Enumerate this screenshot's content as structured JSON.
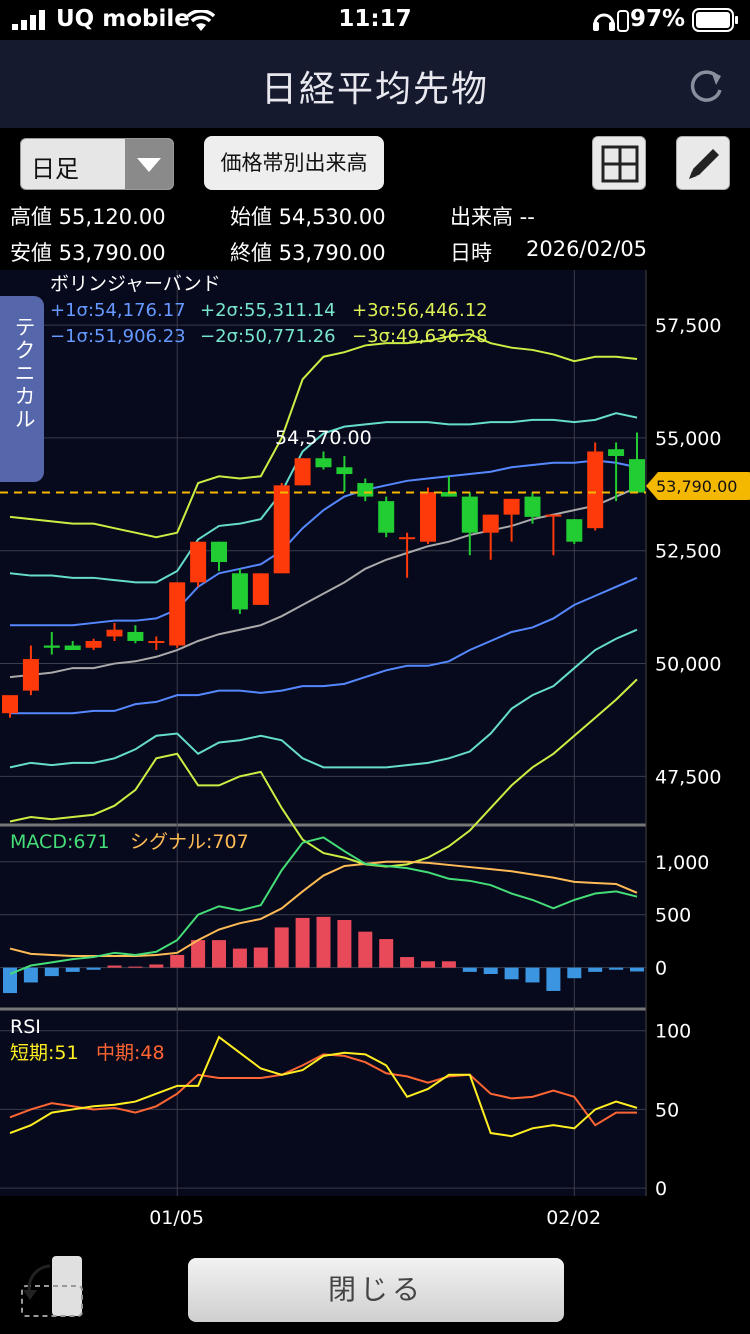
{
  "status": {
    "carrier": "UQ mobile",
    "time": "11:17",
    "battery": "97%"
  },
  "navbar": {
    "title": "日経平均先物"
  },
  "toolbar": {
    "period": "日足",
    "volume_button": "価格帯別出来高"
  },
  "info": {
    "high": "高値 55,120.00",
    "open": "始値 54,530.00",
    "volume": "出来高 --",
    "low": "安値 53,790.00",
    "close": "終値 53,790.00",
    "date_label": "日時",
    "date": "2026/02/05"
  },
  "side_tab": "テクニカル",
  "bollinger": {
    "title": "ボリンジャーバンド",
    "p1": "+1σ:54,176.17",
    "p2": "+2σ:55,311.14",
    "p3": "+3σ:56,446.12",
    "m1": "−1σ:51,906.23",
    "m2": "−2σ:50,771.26",
    "m3": "−3σ:49,636.28"
  },
  "price_annotation": "54,570.00",
  "current_price": "53,790.00",
  "macd": {
    "label": "MACD:671",
    "signal": "シグナル:707"
  },
  "rsi": {
    "label": "RSI",
    "short": "短期:51",
    "mid": "中期:48"
  },
  "bottom": {
    "close_label": "閉じる"
  },
  "colors": {
    "up": "#ff3a0a",
    "down": "#22cc33",
    "mid_band": "#aaaaaa",
    "band1": "#5588ff",
    "band2": "#66ddcc",
    "band3": "#ccee44",
    "macd": "#44dd77",
    "signal": "#ffbb55",
    "rsi_short": "#ffee22",
    "rsi_mid": "#ff6633"
  },
  "chart_data": [
    {
      "type": "candlestick",
      "title": "日経平均先物",
      "period": "日足",
      "y_ticks": [
        47500,
        50000,
        52500,
        55000,
        57500
      ],
      "x_ticks": [
        "01/05",
        "02/02"
      ],
      "ylim": [
        46400,
        58500
      ],
      "candles": [
        {
          "o": 48900,
          "h": 49200,
          "l": 48800,
          "c": 49300
        },
        {
          "o": 49400,
          "h": 50400,
          "l": 49300,
          "c": 50100
        },
        {
          "o": 50400,
          "h": 50700,
          "l": 50200,
          "c": 50350
        },
        {
          "o": 50400,
          "h": 50500,
          "l": 50300,
          "c": 50300
        },
        {
          "o": 50350,
          "h": 50550,
          "l": 50300,
          "c": 50500
        },
        {
          "o": 50600,
          "h": 50900,
          "l": 50500,
          "c": 50750
        },
        {
          "o": 50700,
          "h": 50850,
          "l": 50450,
          "c": 50500
        },
        {
          "o": 50500,
          "h": 50600,
          "l": 50300,
          "c": 50500
        },
        {
          "o": 50400,
          "h": 51800,
          "l": 50350,
          "c": 51800
        },
        {
          "o": 51800,
          "h": 52700,
          "l": 51700,
          "c": 52700
        },
        {
          "o": 52700,
          "h": 52700,
          "l": 52050,
          "c": 52250
        },
        {
          "o": 52000,
          "h": 52100,
          "l": 51100,
          "c": 51200
        },
        {
          "o": 51300,
          "h": 52000,
          "l": 51300,
          "c": 52000
        },
        {
          "o": 52000,
          "h": 54000,
          "l": 52000,
          "c": 53950
        },
        {
          "o": 53950,
          "h": 54550,
          "l": 53950,
          "c": 54550
        },
        {
          "o": 54550,
          "h": 54700,
          "l": 54300,
          "c": 54350
        },
        {
          "o": 54350,
          "h": 54600,
          "l": 53800,
          "c": 54200
        },
        {
          "o": 54000,
          "h": 54100,
          "l": 53600,
          "c": 53700
        },
        {
          "o": 53600,
          "h": 53700,
          "l": 52800,
          "c": 52900
        },
        {
          "o": 52800,
          "h": 52900,
          "l": 51900,
          "c": 52800
        },
        {
          "o": 52700,
          "h": 53900,
          "l": 52650,
          "c": 53800
        },
        {
          "o": 53800,
          "h": 54150,
          "l": 53700,
          "c": 53700
        },
        {
          "o": 53700,
          "h": 53800,
          "l": 52400,
          "c": 52900
        },
        {
          "o": 52900,
          "h": 53300,
          "l": 52300,
          "c": 53300
        },
        {
          "o": 53300,
          "h": 53650,
          "l": 52700,
          "c": 53650
        },
        {
          "o": 53700,
          "h": 53800,
          "l": 53100,
          "c": 53250
        },
        {
          "o": 53300,
          "h": 53300,
          "l": 52400,
          "c": 53300
        },
        {
          "o": 53200,
          "h": 53200,
          "l": 52650,
          "c": 52700
        },
        {
          "o": 53000,
          "h": 54900,
          "l": 52950,
          "c": 54700
        },
        {
          "o": 54750,
          "h": 54900,
          "l": 53600,
          "c": 54600
        },
        {
          "o": 54530,
          "h": 55120,
          "l": 53790,
          "c": 53790
        }
      ],
      "bollinger": {
        "mid": [
          49700,
          49750,
          49800,
          49900,
          49900,
          50000,
          50050,
          50150,
          50300,
          50500,
          50650,
          50750,
          50850,
          51050,
          51300,
          51550,
          51800,
          52100,
          52300,
          52450,
          52600,
          52700,
          52850,
          52950,
          53050,
          53200,
          53300,
          53400,
          53500,
          53700,
          53900
        ],
        "p1": [
          50850,
          50850,
          50850,
          50850,
          50900,
          50950,
          50950,
          51000,
          51200,
          51700,
          52000,
          52100,
          52200,
          52500,
          53000,
          53400,
          53700,
          53850,
          53950,
          54050,
          54100,
          54150,
          54200,
          54250,
          54350,
          54400,
          54450,
          54450,
          54500,
          54450,
          54350
        ],
        "p2": [
          52000,
          51950,
          51950,
          51900,
          51900,
          51850,
          51800,
          51800,
          52050,
          52750,
          53050,
          53100,
          53200,
          53800,
          54700,
          55100,
          55250,
          55300,
          55350,
          55350,
          55350,
          55300,
          55300,
          55350,
          55350,
          55400,
          55400,
          55350,
          55400,
          55550,
          55450
        ],
        "p3": [
          53250,
          53200,
          53150,
          53100,
          53100,
          53000,
          52900,
          52800,
          52900,
          54000,
          54150,
          54100,
          54150,
          55000,
          56300,
          56800,
          56900,
          57050,
          57100,
          57100,
          57150,
          57250,
          57300,
          57100,
          57000,
          56950,
          56850,
          56700,
          56800,
          56800,
          56750
        ],
        "m1": [
          48900,
          48900,
          48900,
          48900,
          48950,
          48950,
          49100,
          49150,
          49300,
          49300,
          49400,
          49400,
          49350,
          49400,
          49500,
          49500,
          49550,
          49700,
          49850,
          49950,
          49950,
          50050,
          50300,
          50500,
          50700,
          50800,
          51000,
          51300,
          51500,
          51700,
          51900
        ],
        "m2": [
          47700,
          47800,
          47750,
          47800,
          47800,
          47900,
          48100,
          48400,
          48450,
          48000,
          48250,
          48300,
          48400,
          48300,
          47900,
          47700,
          47700,
          47700,
          47700,
          47750,
          47800,
          47900,
          48050,
          48450,
          49000,
          49300,
          49500,
          49900,
          50300,
          50550,
          50750
        ],
        "m3": [
          46500,
          46600,
          46550,
          46600,
          46650,
          46850,
          47200,
          47900,
          48000,
          47300,
          47300,
          47500,
          47600,
          46800,
          46100,
          45800,
          45700,
          45550,
          45500,
          45550,
          45700,
          45950,
          46300,
          46800,
          47300,
          47700,
          48000,
          48400,
          48800,
          49200,
          49650
        ]
      }
    },
    {
      "type": "line",
      "title": "MACD",
      "y_ticks": [
        0,
        500,
        1000
      ],
      "ylim": [
        -400,
        1300
      ],
      "series": [
        {
          "name": "MACD",
          "values": [
            -60,
            20,
            50,
            80,
            100,
            140,
            120,
            150,
            260,
            500,
            580,
            540,
            590,
            920,
            1180,
            1230,
            1100,
            980,
            960,
            940,
            900,
            840,
            820,
            780,
            700,
            640,
            560,
            640,
            700,
            720,
            671
          ]
        },
        {
          "name": "シグナル",
          "values": [
            180,
            130,
            120,
            110,
            110,
            110,
            110,
            120,
            140,
            260,
            360,
            420,
            460,
            560,
            720,
            870,
            960,
            980,
            1000,
            1000,
            990,
            970,
            950,
            930,
            910,
            880,
            850,
            810,
            800,
            790,
            707
          ]
        },
        {
          "name": "histogram",
          "values": [
            -240,
            -140,
            -80,
            -40,
            -20,
            20,
            10,
            30,
            120,
            260,
            260,
            180,
            190,
            380,
            470,
            480,
            450,
            340,
            270,
            100,
            60,
            60,
            -40,
            -60,
            -110,
            -140,
            -220,
            -100,
            -40,
            -20,
            -36
          ]
        }
      ]
    },
    {
      "type": "line",
      "title": "RSI",
      "y_ticks": [
        0,
        50,
        100
      ],
      "ylim": [
        -5,
        110
      ],
      "series": [
        {
          "name": "短期",
          "values": [
            35,
            40,
            48,
            50,
            52,
            53,
            55,
            60,
            65,
            65,
            96,
            86,
            76,
            72,
            75,
            84,
            86,
            85,
            78,
            58,
            63,
            72,
            72,
            35,
            33,
            38,
            40,
            38,
            50,
            55,
            51
          ]
        },
        {
          "name": "中期",
          "values": [
            45,
            50,
            54,
            52,
            50,
            51,
            48,
            52,
            60,
            72,
            70,
            70,
            70,
            72,
            78,
            85,
            84,
            80,
            73,
            71,
            67,
            71,
            72,
            60,
            57,
            58,
            62,
            58,
            40,
            48,
            48
          ]
        }
      ]
    }
  ]
}
